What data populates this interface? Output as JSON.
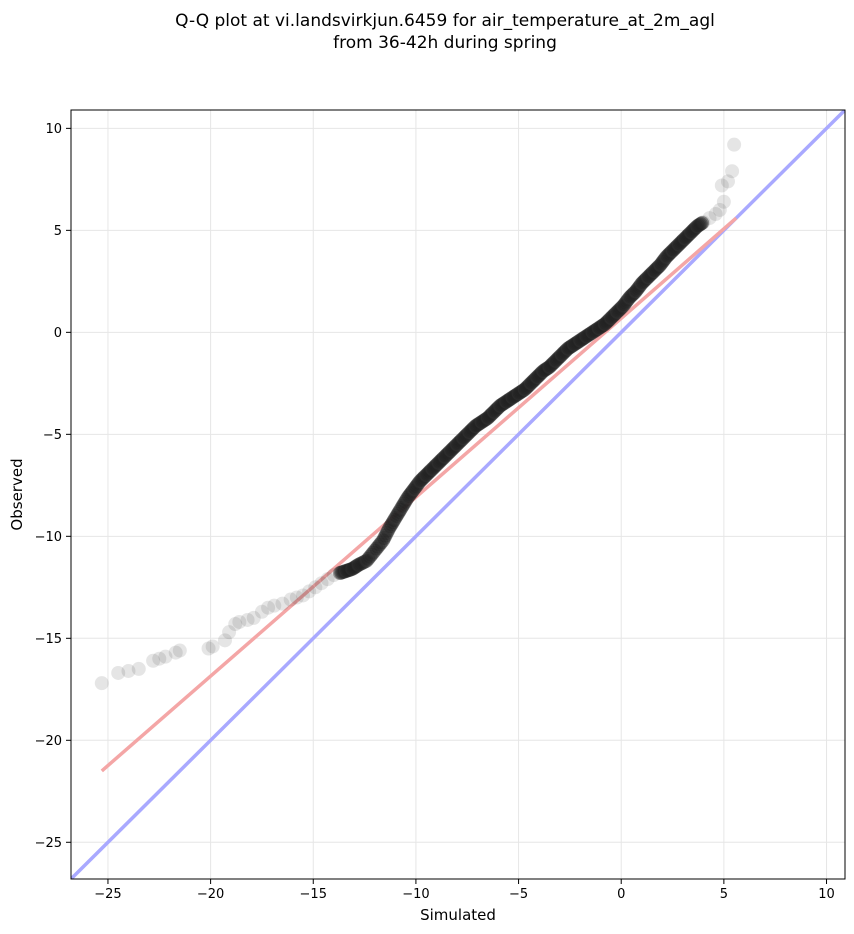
{
  "chart_data": {
    "type": "scatter",
    "title_lines": [
      "Q-Q plot at vi.landsvirkjun.6459 for air_temperature_at_2m_agl",
      "from 36-42h during spring"
    ],
    "xlabel": "Simulated",
    "ylabel": "Observed",
    "xlim": [
      -26.8,
      10.9
    ],
    "ylim": [
      -26.8,
      10.9
    ],
    "xticks": [
      -25,
      -20,
      -15,
      -10,
      -5,
      0,
      5,
      10
    ],
    "yticks": [
      -25,
      -20,
      -15,
      -10,
      -5,
      0,
      5,
      10
    ],
    "xtick_labels": [
      "−25",
      "−20",
      "−15",
      "−10",
      "−5",
      "0",
      "5",
      "10"
    ],
    "ytick_labels": [
      "−25",
      "−20",
      "−15",
      "−10",
      "−5",
      "0",
      "5",
      "10"
    ],
    "grid": true,
    "reference_lines": [
      {
        "kind": "identity",
        "color": "#a9a9ff",
        "x": [
          -26.8,
          10.9
        ],
        "y": [
          -26.8,
          10.9
        ]
      },
      {
        "kind": "fit",
        "color": "#f4a6a6",
        "x": [
          -25.3,
          5.6
        ],
        "y": [
          -21.5,
          5.6
        ]
      }
    ],
    "points": {
      "x": [
        -25.3,
        -24.5,
        -24.0,
        -23.5,
        -22.8,
        -22.5,
        -22.2,
        -21.7,
        -21.5,
        -20.1,
        -19.9,
        -19.3,
        -19.1,
        -18.8,
        -18.6,
        -18.2,
        -17.9,
        -17.5,
        -17.2,
        -16.9,
        -16.5,
        -16.1,
        -15.8,
        -15.5,
        -15.2,
        -14.9,
        -14.6,
        -14.3,
        -14.0,
        -13.7,
        -13.4,
        -13.1,
        -12.8,
        -12.4,
        -12.0,
        -11.6,
        -11.3,
        -11.0,
        -10.7,
        -10.4,
        -10.1,
        -9.8,
        -9.5,
        -9.2,
        -8.9,
        -8.6,
        -8.3,
        -8.0,
        -7.7,
        -7.4,
        -7.1,
        -6.8,
        -6.5,
        -6.2,
        -5.9,
        -5.6,
        -5.3,
        -5.0,
        -4.7,
        -4.4,
        -4.1,
        -3.8,
        -3.5,
        -3.2,
        -2.9,
        -2.6,
        -2.3,
        -2.0,
        -1.7,
        -1.4,
        -1.1,
        -0.8,
        -0.5,
        -0.2,
        0.1,
        0.4,
        0.7,
        1.0,
        1.3,
        1.6,
        1.9,
        2.2,
        2.5,
        2.8,
        3.1,
        3.4,
        3.7,
        4.0,
        4.3,
        4.6,
        4.8,
        5.0,
        4.9,
        5.2,
        5.4,
        5.5
      ],
      "y": [
        -17.2,
        -16.7,
        -16.6,
        -16.5,
        -16.1,
        -16.0,
        -15.9,
        -15.7,
        -15.6,
        -15.5,
        -15.4,
        -15.1,
        -14.7,
        -14.3,
        -14.2,
        -14.1,
        -14.0,
        -13.7,
        -13.5,
        -13.4,
        -13.3,
        -13.1,
        -13.0,
        -12.9,
        -12.7,
        -12.5,
        -12.3,
        -12.1,
        -11.9,
        -11.8,
        -11.7,
        -11.6,
        -11.4,
        -11.2,
        -10.7,
        -10.2,
        -9.6,
        -9.1,
        -8.6,
        -8.1,
        -7.7,
        -7.3,
        -7.0,
        -6.7,
        -6.4,
        -6.1,
        -5.8,
        -5.5,
        -5.2,
        -4.9,
        -4.6,
        -4.4,
        -4.2,
        -3.9,
        -3.6,
        -3.4,
        -3.2,
        -3.0,
        -2.8,
        -2.5,
        -2.2,
        -1.9,
        -1.7,
        -1.4,
        -1.1,
        -0.8,
        -0.6,
        -0.4,
        -0.2,
        0.0,
        0.2,
        0.4,
        0.7,
        1.0,
        1.3,
        1.7,
        2.0,
        2.4,
        2.7,
        3.0,
        3.3,
        3.7,
        4.0,
        4.3,
        4.6,
        4.9,
        5.2,
        5.4,
        5.6,
        5.8,
        6.0,
        6.4,
        7.2,
        7.4,
        7.9,
        9.2
      ]
    }
  }
}
